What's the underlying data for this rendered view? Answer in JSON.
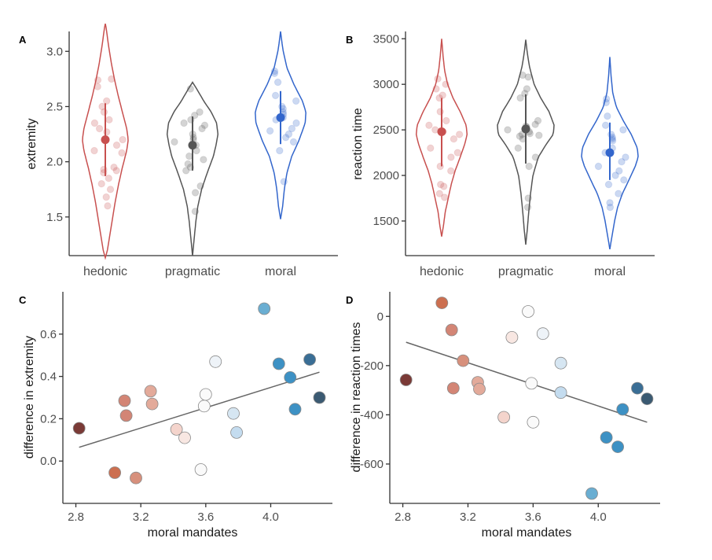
{
  "chart_data": [
    {
      "panel": "A",
      "type": "violin",
      "ylabel": "extremity",
      "xlabel": "",
      "categories": [
        "hedonic",
        "pragmatic",
        "moral"
      ],
      "ylim": [
        1.15,
        3.18
      ],
      "yticks": [
        1.5,
        2.0,
        2.5,
        3.0
      ],
      "ytick_labels": [
        "1.5",
        "2.0",
        "2.5",
        "3.0"
      ],
      "colors": [
        "#c8504f",
        "#555555",
        "#3366cc"
      ],
      "groups": [
        {
          "name": "hedonic",
          "color": "#c8504f",
          "mean": 2.2,
          "ci": [
            1.87,
            2.53
          ],
          "range": [
            1.13,
            3.25
          ],
          "density": [
            [
              1.13,
              0
            ],
            [
              1.2,
              0.08
            ],
            [
              1.35,
              0.18
            ],
            [
              1.5,
              0.28
            ],
            [
              1.65,
              0.38
            ],
            [
              1.8,
              0.5
            ],
            [
              1.95,
              0.64
            ],
            [
              2.1,
              0.8
            ],
            [
              2.2,
              0.86
            ],
            [
              2.3,
              0.8
            ],
            [
              2.45,
              0.64
            ],
            [
              2.6,
              0.48
            ],
            [
              2.75,
              0.34
            ],
            [
              2.9,
              0.22
            ],
            [
              3.05,
              0.12
            ],
            [
              3.2,
              0.04
            ],
            [
              3.25,
              0
            ]
          ],
          "points": [
            2.74,
            2.75,
            2.68,
            2.55,
            2.5,
            2.45,
            2.38,
            2.35,
            2.3,
            2.27,
            2.2,
            2.15,
            2.1,
            2.08,
            1.95,
            1.93,
            1.92,
            1.9,
            1.85,
            1.8,
            1.75,
            1.68,
            1.6
          ]
        },
        {
          "name": "pragmatic",
          "color": "#555555",
          "mean": 2.15,
          "ci": [
            1.92,
            2.41
          ],
          "range": [
            1.15,
            2.72
          ],
          "density": [
            [
              1.15,
              0
            ],
            [
              1.3,
              0.06
            ],
            [
              1.45,
              0.12
            ],
            [
              1.6,
              0.2
            ],
            [
              1.75,
              0.34
            ],
            [
              1.9,
              0.55
            ],
            [
              2.05,
              0.78
            ],
            [
              2.15,
              0.88
            ],
            [
              2.25,
              0.95
            ],
            [
              2.35,
              0.9
            ],
            [
              2.45,
              0.7
            ],
            [
              2.55,
              0.42
            ],
            [
              2.65,
              0.18
            ],
            [
              2.72,
              0
            ]
          ],
          "points": [
            2.66,
            2.45,
            2.42,
            2.38,
            2.35,
            2.33,
            2.3,
            2.25,
            2.22,
            2.2,
            2.18,
            2.15,
            2.1,
            2.05,
            2.02,
            1.98,
            1.95,
            1.92,
            1.78,
            1.72,
            1.55
          ]
        },
        {
          "name": "moral",
          "color": "#3366cc",
          "mean": 2.4,
          "ci": [
            2.16,
            2.64
          ],
          "range": [
            1.48,
            3.18
          ],
          "density": [
            [
              1.48,
              0
            ],
            [
              1.6,
              0.08
            ],
            [
              1.75,
              0.14
            ],
            [
              1.9,
              0.24
            ],
            [
              2.05,
              0.42
            ],
            [
              2.2,
              0.7
            ],
            [
              2.35,
              0.92
            ],
            [
              2.45,
              0.95
            ],
            [
              2.55,
              0.82
            ],
            [
              2.7,
              0.5
            ],
            [
              2.85,
              0.24
            ],
            [
              3.0,
              0.1
            ],
            [
              3.1,
              0.04
            ],
            [
              3.18,
              0
            ]
          ],
          "points": [
            2.82,
            2.8,
            2.72,
            2.6,
            2.55,
            2.5,
            2.48,
            2.45,
            2.43,
            2.4,
            2.38,
            2.35,
            2.3,
            2.28,
            2.25,
            2.22,
            2.18,
            2.1,
            1.82
          ]
        }
      ]
    },
    {
      "panel": "B",
      "type": "violin",
      "ylabel": "reaction time",
      "xlabel": "",
      "categories": [
        "hedonic",
        "pragmatic",
        "moral"
      ],
      "ylim": [
        1120,
        3580
      ],
      "yticks": [
        1500,
        2000,
        2500,
        3000,
        3500
      ],
      "ytick_labels": [
        "1500",
        "2000",
        "2500",
        "3000",
        "3500"
      ],
      "colors": [
        "#c8504f",
        "#555555",
        "#3366cc"
      ],
      "groups": [
        {
          "name": "hedonic",
          "color": "#c8504f",
          "mean": 2480,
          "ci": [
            2100,
            2850
          ],
          "range": [
            1330,
            3500
          ],
          "density": [
            [
              1330,
              0
            ],
            [
              1450,
              0.06
            ],
            [
              1600,
              0.12
            ],
            [
              1750,
              0.22
            ],
            [
              1900,
              0.32
            ],
            [
              2050,
              0.45
            ],
            [
              2200,
              0.62
            ],
            [
              2350,
              0.78
            ],
            [
              2450,
              0.85
            ],
            [
              2550,
              0.82
            ],
            [
              2700,
              0.62
            ],
            [
              2850,
              0.38
            ],
            [
              3000,
              0.2
            ],
            [
              3150,
              0.1
            ],
            [
              3300,
              0.05
            ],
            [
              3500,
              0
            ]
          ],
          "points": [
            3060,
            3000,
            2950,
            2880,
            2850,
            2700,
            2600,
            2550,
            2500,
            2480,
            2450,
            2400,
            2300,
            2250,
            2200,
            2100,
            2050,
            1900,
            1880,
            1800,
            1760
          ]
        },
        {
          "name": "pragmatic",
          "color": "#555555",
          "mean": 2510,
          "ci": [
            2130,
            2890
          ],
          "range": [
            1240,
            3490
          ],
          "density": [
            [
              1240,
              0
            ],
            [
              1400,
              0.05
            ],
            [
              1600,
              0.1
            ],
            [
              1800,
              0.16
            ],
            [
              2000,
              0.24
            ],
            [
              2200,
              0.42
            ],
            [
              2350,
              0.7
            ],
            [
              2450,
              0.92
            ],
            [
              2550,
              0.95
            ],
            [
              2700,
              0.78
            ],
            [
              2850,
              0.5
            ],
            [
              3000,
              0.28
            ],
            [
              3200,
              0.12
            ],
            [
              3350,
              0.05
            ],
            [
              3490,
              0
            ]
          ],
          "points": [
            3100,
            3080,
            2950,
            2900,
            2850,
            2600,
            2560,
            2540,
            2530,
            2520,
            2500,
            2480,
            2460,
            2450,
            2440,
            2430,
            2400,
            2300,
            2200,
            2100,
            1750,
            1650
          ]
        },
        {
          "name": "moral",
          "color": "#3366cc",
          "mean": 2250,
          "ci": [
            1950,
            2580
          ],
          "range": [
            1190,
            3300
          ],
          "density": [
            [
              1190,
              0
            ],
            [
              1350,
              0.08
            ],
            [
              1500,
              0.16
            ],
            [
              1650,
              0.26
            ],
            [
              1800,
              0.42
            ],
            [
              1950,
              0.64
            ],
            [
              2100,
              0.85
            ],
            [
              2200,
              0.95
            ],
            [
              2300,
              0.92
            ],
            [
              2450,
              0.72
            ],
            [
              2600,
              0.45
            ],
            [
              2750,
              0.22
            ],
            [
              2900,
              0.1
            ],
            [
              3100,
              0.04
            ],
            [
              3300,
              0
            ]
          ],
          "points": [
            2840,
            2800,
            2650,
            2550,
            2500,
            2450,
            2420,
            2400,
            2380,
            2300,
            2250,
            2200,
            2150,
            2100,
            2050,
            2000,
            1950,
            1900,
            1800,
            1700,
            1650
          ]
        }
      ]
    },
    {
      "panel": "C",
      "type": "scatter",
      "xlabel": "moral mandates",
      "ylabel": "difference in extremity",
      "xlim": [
        2.72,
        4.38
      ],
      "ylim": [
        -0.2,
        0.8
      ],
      "xticks": [
        2.8,
        3.2,
        3.6,
        4.0
      ],
      "xtick_labels": [
        "2.8",
        "3.2",
        "3.6",
        "4.0"
      ],
      "yticks": [
        0.0,
        0.2,
        0.4,
        0.6
      ],
      "ytick_labels": [
        "0.0",
        "0.2",
        "0.4",
        "0.6"
      ],
      "fit": {
        "x": [
          2.82,
          4.3
        ],
        "y": [
          0.065,
          0.42
        ]
      },
      "points": [
        {
          "x": 2.82,
          "y": 0.155,
          "color": "#7a3a36"
        },
        {
          "x": 3.04,
          "y": -0.055,
          "color": "#cc6f50"
        },
        {
          "x": 3.1,
          "y": 0.285,
          "color": "#d38575"
        },
        {
          "x": 3.11,
          "y": 0.215,
          "color": "#d38575"
        },
        {
          "x": 3.17,
          "y": -0.08,
          "color": "#d7907c"
        },
        {
          "x": 3.26,
          "y": 0.33,
          "color": "#e3aa9a"
        },
        {
          "x": 3.27,
          "y": 0.27,
          "color": "#e3aa9a"
        },
        {
          "x": 3.42,
          "y": 0.15,
          "color": "#f4d4cc"
        },
        {
          "x": 3.47,
          "y": 0.11,
          "color": "#f8e7e2"
        },
        {
          "x": 3.57,
          "y": -0.04,
          "color": "#fafafa"
        },
        {
          "x": 3.59,
          "y": 0.26,
          "color": "#fafafa"
        },
        {
          "x": 3.6,
          "y": 0.315,
          "color": "#fafafa"
        },
        {
          "x": 3.66,
          "y": 0.47,
          "color": "#eef3f8"
        },
        {
          "x": 3.77,
          "y": 0.225,
          "color": "#d6e6f2"
        },
        {
          "x": 3.79,
          "y": 0.135,
          "color": "#c4dcef"
        },
        {
          "x": 3.96,
          "y": 0.72,
          "color": "#6aaed2"
        },
        {
          "x": 4.05,
          "y": 0.46,
          "color": "#3d91c4"
        },
        {
          "x": 4.12,
          "y": 0.395,
          "color": "#3d91c4"
        },
        {
          "x": 4.15,
          "y": 0.245,
          "color": "#3d91c4"
        },
        {
          "x": 4.24,
          "y": 0.48,
          "color": "#3a6e95"
        },
        {
          "x": 4.3,
          "y": 0.3,
          "color": "#3b5a72"
        }
      ]
    },
    {
      "panel": "D",
      "type": "scatter",
      "xlabel": "moral mandates",
      "ylabel": "difference in reaction times",
      "xlim": [
        2.72,
        4.38
      ],
      "ylim": [
        -760,
        100
      ],
      "xticks": [
        2.8,
        3.2,
        3.6,
        4.0
      ],
      "xtick_labels": [
        "2.8",
        "3.2",
        "3.6",
        "4.0"
      ],
      "yticks": [
        -600,
        -400,
        -200,
        0
      ],
      "ytick_labels": [
        "-600",
        "-400",
        "-200",
        "0"
      ],
      "fit": {
        "x": [
          2.82,
          4.3
        ],
        "y": [
          -105,
          -430
        ]
      },
      "points": [
        {
          "x": 2.82,
          "y": -258,
          "color": "#7a3a36"
        },
        {
          "x": 3.04,
          "y": 55,
          "color": "#cc6f50"
        },
        {
          "x": 3.1,
          "y": -55,
          "color": "#d38575"
        },
        {
          "x": 3.11,
          "y": -292,
          "color": "#d38575"
        },
        {
          "x": 3.17,
          "y": -180,
          "color": "#d7907c"
        },
        {
          "x": 3.26,
          "y": -268,
          "color": "#e3aa9a"
        },
        {
          "x": 3.27,
          "y": -295,
          "color": "#e3aa9a"
        },
        {
          "x": 3.42,
          "y": -410,
          "color": "#f4d4cc"
        },
        {
          "x": 3.47,
          "y": -85,
          "color": "#f8e7e2"
        },
        {
          "x": 3.57,
          "y": 20,
          "color": "#fafafa"
        },
        {
          "x": 3.59,
          "y": -272,
          "color": "#fafafa"
        },
        {
          "x": 3.6,
          "y": -430,
          "color": "#fafafa"
        },
        {
          "x": 3.66,
          "y": -70,
          "color": "#eef3f8"
        },
        {
          "x": 3.77,
          "y": -190,
          "color": "#d6e6f2"
        },
        {
          "x": 3.77,
          "y": -310,
          "color": "#c4dcef"
        },
        {
          "x": 3.96,
          "y": -720,
          "color": "#6aaed2"
        },
        {
          "x": 4.05,
          "y": -492,
          "color": "#3d91c4"
        },
        {
          "x": 4.12,
          "y": -530,
          "color": "#3d91c4"
        },
        {
          "x": 4.15,
          "y": -378,
          "color": "#3d91c4"
        },
        {
          "x": 4.24,
          "y": -292,
          "color": "#3a6e95"
        },
        {
          "x": 4.3,
          "y": -335,
          "color": "#3b5a72"
        }
      ]
    }
  ]
}
